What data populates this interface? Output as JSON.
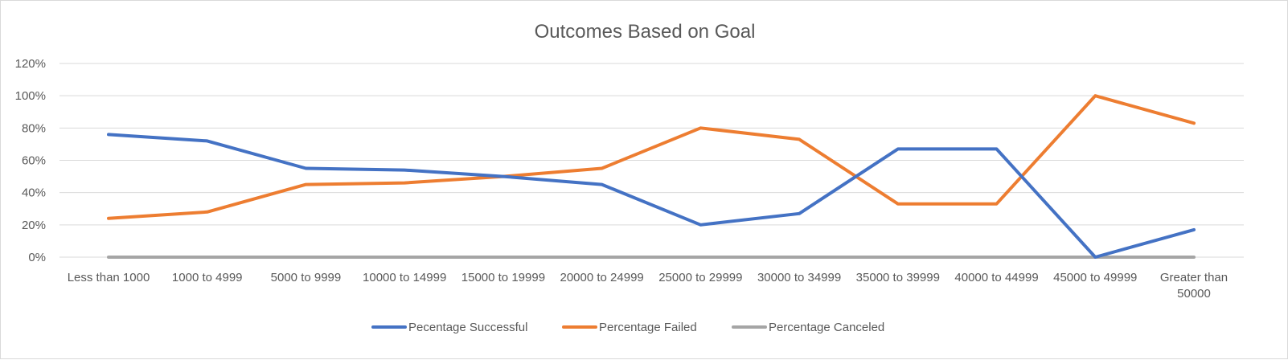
{
  "chart_data": {
    "type": "line",
    "title": "Outcomes Based on Goal",
    "xlabel": "",
    "ylabel": "",
    "categories": [
      [
        "Less than 1000"
      ],
      [
        "1000 to 4999"
      ],
      [
        "5000 to 9999"
      ],
      [
        "10000 to 14999"
      ],
      [
        "15000 to 19999"
      ],
      [
        "20000 to 24999"
      ],
      [
        "25000 to 29999"
      ],
      [
        "30000 to 34999"
      ],
      [
        "35000 to 39999"
      ],
      [
        "40000 to 44999"
      ],
      [
        "45000 to 49999"
      ],
      [
        "Greater than",
        "50000"
      ]
    ],
    "y_ticks": [
      "0%",
      "20%",
      "40%",
      "60%",
      "80%",
      "100%",
      "120%"
    ],
    "ylim": [
      0,
      120
    ],
    "grid": true,
    "legend_position": "bottom",
    "series": [
      {
        "name": "Pecentage Successful",
        "color": "#4472c4",
        "values": [
          76,
          72,
          55,
          54,
          50,
          45,
          20,
          27,
          67,
          67,
          0,
          17
        ]
      },
      {
        "name": "Percentage Failed",
        "color": "#ed7d31",
        "values": [
          24,
          28,
          45,
          46,
          50,
          55,
          80,
          73,
          33,
          33,
          100,
          83
        ]
      },
      {
        "name": "Percentage Canceled",
        "color": "#a5a5a5",
        "values": [
          0,
          0,
          0,
          0,
          0,
          0,
          0,
          0,
          0,
          0,
          0,
          0
        ]
      }
    ]
  }
}
